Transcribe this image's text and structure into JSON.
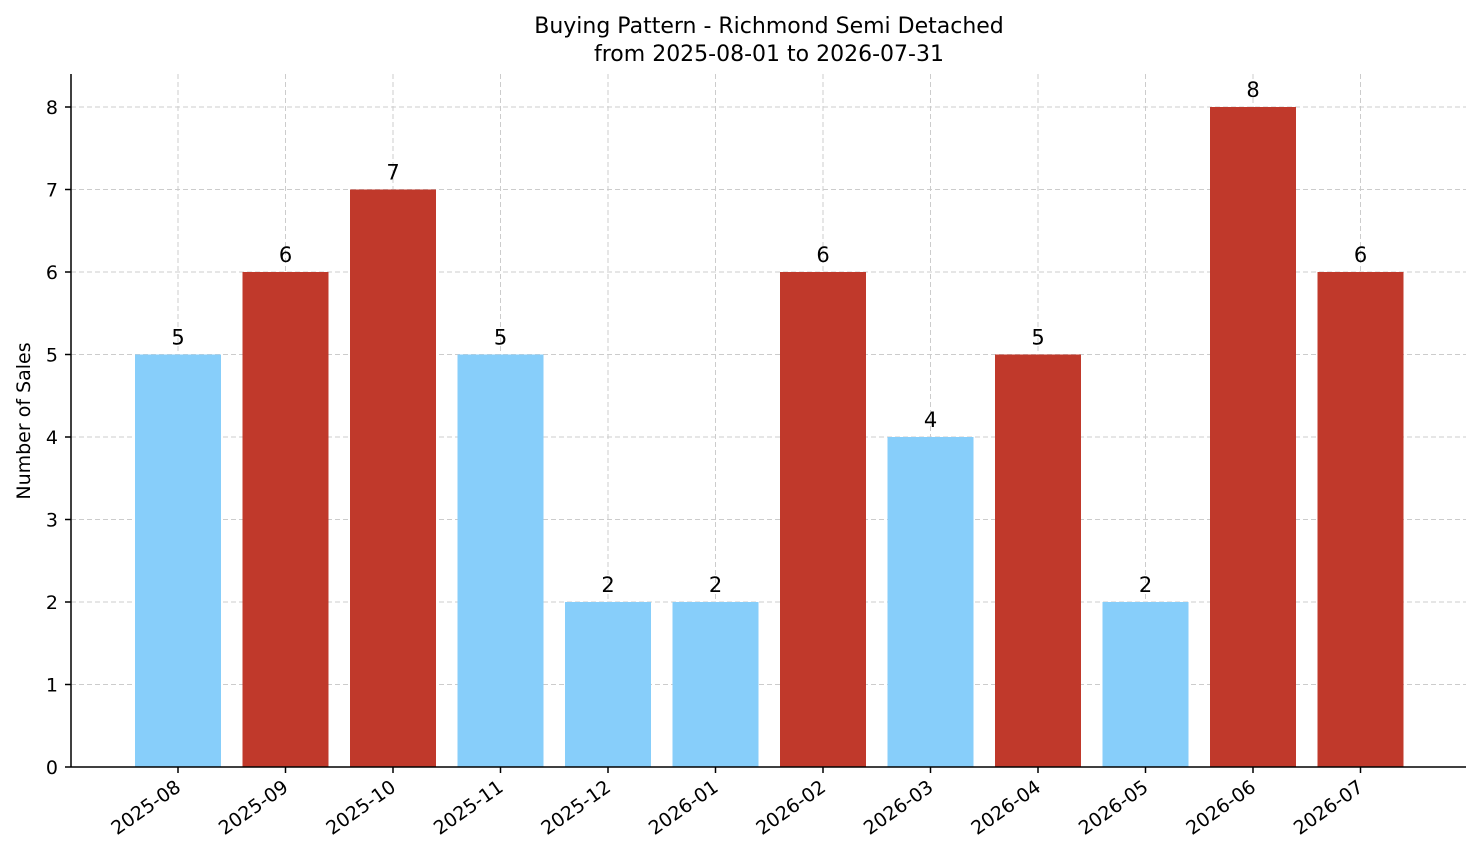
{
  "chart_data": {
    "type": "bar",
    "title": "Buying Pattern - Richmond Semi Detached",
    "subtitle": "from 2025-08-01 to 2026-07-31",
    "xlabel": "",
    "ylabel": "Number of Sales",
    "ylim": [
      0,
      8.4
    ],
    "yticks": [
      "0",
      "1",
      "2",
      "3",
      "4",
      "5",
      "6",
      "7",
      "8"
    ],
    "grid": true,
    "categories": [
      "2025-08",
      "2025-09",
      "2025-10",
      "2025-11",
      "2025-12",
      "2026-01",
      "2026-02",
      "2026-03",
      "2026-04",
      "2026-05",
      "2026-06",
      "2026-07"
    ],
    "values": [
      5,
      6,
      7,
      5,
      2,
      2,
      6,
      4,
      5,
      2,
      8,
      6
    ],
    "data_labels": [
      "5",
      "6",
      "7",
      "5",
      "2",
      "2",
      "6",
      "4",
      "5",
      "2",
      "8",
      "6"
    ],
    "bar_colors": [
      "#87CEFA",
      "#C0392B",
      "#C0392B",
      "#87CEFA",
      "#87CEFA",
      "#87CEFA",
      "#C0392B",
      "#87CEFA",
      "#C0392B",
      "#87CEFA",
      "#C0392B",
      "#C0392B"
    ]
  }
}
